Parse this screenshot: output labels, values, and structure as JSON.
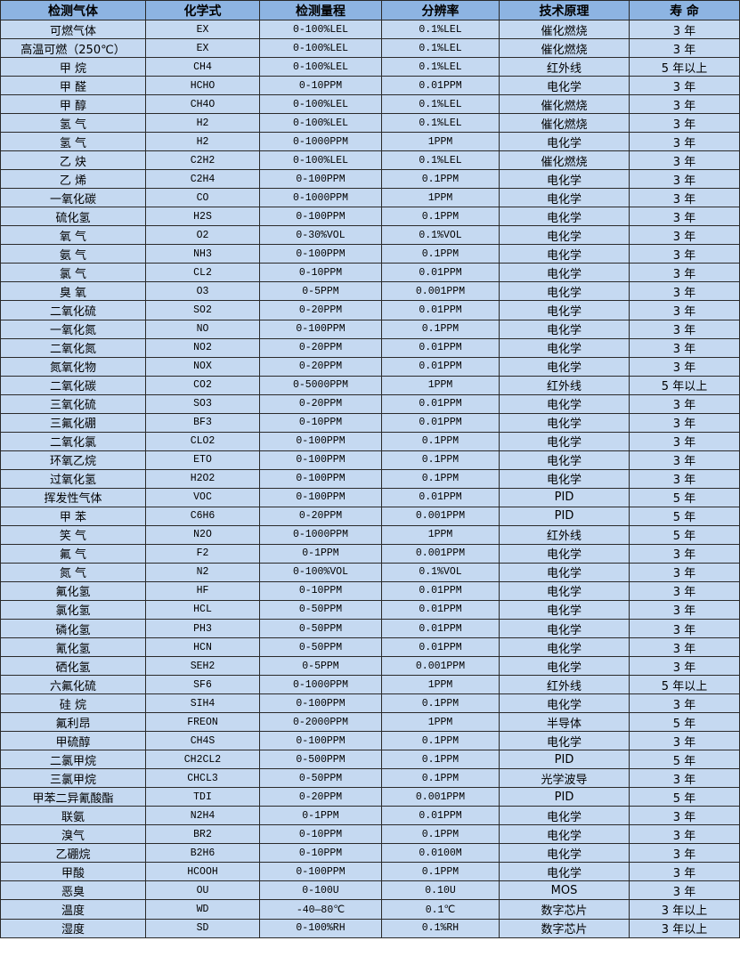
{
  "table": {
    "headers": [
      "检测气体",
      "化学式",
      "检测量程",
      "分辨率",
      "技术原理",
      "寿 命"
    ],
    "rows": [
      [
        "可燃气体",
        "EX",
        "0-100%LEL",
        "0.1%LEL",
        "催化燃烧",
        "3 年"
      ],
      [
        "高温可燃（250℃）",
        "EX",
        "0-100%LEL",
        "0.1%LEL",
        "催化燃烧",
        "3 年"
      ],
      [
        "甲 烷",
        "CH4",
        "0-100%LEL",
        "0.1%LEL",
        "红外线",
        "5 年以上"
      ],
      [
        "甲 醛",
        "HCHO",
        "0-10PPM",
        "0.01PPM",
        "电化学",
        "3 年"
      ],
      [
        "甲 醇",
        "CH4O",
        "0-100%LEL",
        "0.1%LEL",
        "催化燃烧",
        "3 年"
      ],
      [
        "氢 气",
        "H2",
        "0-100%LEL",
        "0.1%LEL",
        "催化燃烧",
        "3 年"
      ],
      [
        "氢 气",
        "H2",
        "0-1000PPM",
        "1PPM",
        "电化学",
        "3 年"
      ],
      [
        "乙 炔",
        "C2H2",
        "0-100%LEL",
        "0.1%LEL",
        "催化燃烧",
        "3 年"
      ],
      [
        "乙 烯",
        "C2H4",
        "0-100PPM",
        "0.1PPM",
        "电化学",
        "3 年"
      ],
      [
        "一氧化碳",
        "CO",
        "0-1000PPM",
        "1PPM",
        "电化学",
        "3 年"
      ],
      [
        "硫化氢",
        "H2S",
        "0-100PPM",
        "0.1PPM",
        "电化学",
        "3 年"
      ],
      [
        "氧 气",
        "O2",
        "0-30%VOL",
        "0.1%VOL",
        "电化学",
        "3 年"
      ],
      [
        "氨 气",
        "NH3",
        "0-100PPM",
        "0.1PPM",
        "电化学",
        "3 年"
      ],
      [
        "氯 气",
        "CL2",
        "0-10PPM",
        "0.01PPM",
        "电化学",
        "3 年"
      ],
      [
        "臭 氧",
        "O3",
        "0-5PPM",
        "0.001PPM",
        "电化学",
        "3 年"
      ],
      [
        "二氧化硫",
        "SO2",
        "0-20PPM",
        "0.01PPM",
        "电化学",
        "3 年"
      ],
      [
        "一氧化氮",
        "NO",
        "0-100PPM",
        "0.1PPM",
        "电化学",
        "3 年"
      ],
      [
        "二氧化氮",
        "NO2",
        "0-20PPM",
        "0.01PPM",
        "电化学",
        "3 年"
      ],
      [
        "氮氧化物",
        "NOX",
        "0-20PPM",
        "0.01PPM",
        "电化学",
        "3 年"
      ],
      [
        "二氧化碳",
        "CO2",
        "0-5000PPM",
        "1PPM",
        "红外线",
        "5 年以上"
      ],
      [
        "三氧化硫",
        "SO3",
        "0-20PPM",
        "0.01PPM",
        "电化学",
        "3 年"
      ],
      [
        "三氟化硼",
        "BF3",
        "0-10PPM",
        "0.01PPM",
        "电化学",
        "3 年"
      ],
      [
        "二氧化氯",
        "CLO2",
        "0-100PPM",
        "0.1PPM",
        "电化学",
        "3 年"
      ],
      [
        "环氧乙烷",
        "ETO",
        "0-100PPM",
        "0.1PPM",
        "电化学",
        "3 年"
      ],
      [
        "过氧化氢",
        "H2O2",
        "0-100PPM",
        "0.1PPM",
        "电化学",
        "3 年"
      ],
      [
        "挥发性气体",
        "VOC",
        "0-100PPM",
        "0.01PPM",
        "PID",
        "5 年"
      ],
      [
        "甲 苯",
        "C6H6",
        "0-20PPM",
        "0.001PPM",
        "PID",
        "5 年"
      ],
      [
        "笑 气",
        "N2O",
        "0-1000PPM",
        "1PPM",
        "红外线",
        "5 年"
      ],
      [
        "氟 气",
        "F2",
        "0-1PPM",
        "0.001PPM",
        "电化学",
        "3 年"
      ],
      [
        "氮 气",
        "N2",
        "0-100%VOL",
        "0.1%VOL",
        "电化学",
        "3 年"
      ],
      [
        "氟化氢",
        "HF",
        "0-10PPM",
        "0.01PPM",
        "电化学",
        "3 年"
      ],
      [
        "氯化氢",
        "HCL",
        "0-50PPM",
        "0.01PPM",
        "电化学",
        "3 年"
      ],
      [
        "磷化氢",
        "PH3",
        "0-50PPM",
        "0.01PPM",
        "电化学",
        "3 年"
      ],
      [
        "氰化氢",
        "HCN",
        "0-50PPM",
        "0.01PPM",
        "电化学",
        "3 年"
      ],
      [
        "硒化氢",
        "SEH2",
        "0-5PPM",
        "0.001PPM",
        "电化学",
        "3 年"
      ],
      [
        "六氟化硫",
        "SF6",
        "0-1000PPM",
        "1PPM",
        "红外线",
        "5 年以上"
      ],
      [
        "硅 烷",
        "SIH4",
        "0-100PPM",
        "0.1PPM",
        "电化学",
        "3 年"
      ],
      [
        "氟利昂",
        "FREON",
        "0-2000PPM",
        "1PPM",
        "半导体",
        "5 年"
      ],
      [
        "甲硫醇",
        "CH4S",
        "0-100PPM",
        "0.1PPM",
        "电化学",
        "3 年"
      ],
      [
        "二氯甲烷",
        "CH2CL2",
        "0-500PPM",
        "0.1PPM",
        "PID",
        "5 年"
      ],
      [
        "三氯甲烷",
        "CHCL3",
        "0-50PPM",
        "0.1PPM",
        "光学波导",
        "3 年"
      ],
      [
        "甲苯二异氰酸酯",
        "TDI",
        "0-20PPM",
        "0.001PPM",
        "PID",
        "5 年"
      ],
      [
        "联氨",
        "N2H4",
        "0-1PPM",
        "0.01PPM",
        "电化学",
        "3 年"
      ],
      [
        "溴气",
        "BR2",
        "0-10PPM",
        "0.1PPM",
        "电化学",
        "3 年"
      ],
      [
        "乙硼烷",
        "B2H6",
        "0-10PPM",
        "0.0100M",
        "电化学",
        "3 年"
      ],
      [
        "甲酸",
        "HCOOH",
        "0-100PPM",
        "0.1PPM",
        "电化学",
        "3 年"
      ],
      [
        "恶臭",
        "OU",
        "0-100U",
        "0.10U",
        "MOS",
        "3 年"
      ],
      [
        "温度",
        "WD",
        "-40—80℃",
        "0.1℃",
        "数字芯片",
        "3 年以上"
      ],
      [
        "湿度",
        "SD",
        "0-100%RH",
        "0.1%RH",
        "数字芯片",
        "3 年以上"
      ]
    ]
  },
  "colors": {
    "header_bg": "#8db4e2",
    "body_bg": "#c5d9f1",
    "border": "#2a2a2a"
  }
}
